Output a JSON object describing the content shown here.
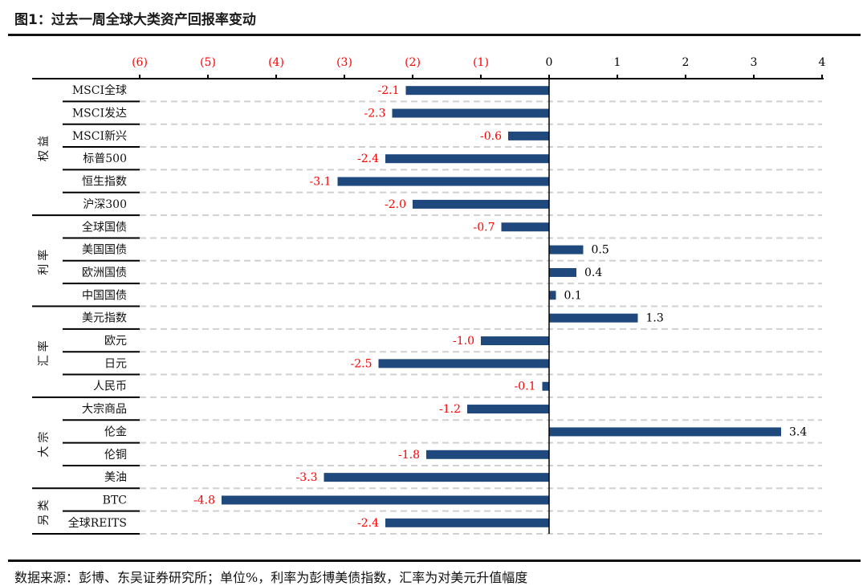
{
  "title": "图1：过去一周全球大类资产回报率变动",
  "footer": "数据来源：彭博、东吴证券研究所；单位%，利率为彭博美债指数，汇率为对美元升值幅度",
  "chart_data": {
    "type": "bar",
    "orientation": "horizontal",
    "xlim": [
      -6,
      4
    ],
    "xticks": [
      -6,
      -5,
      -4,
      -3,
      -2,
      -1,
      0,
      1,
      2,
      3,
      4
    ],
    "xtick_labels": [
      "(6)",
      "(5)",
      "(4)",
      "(3)",
      "(2)",
      "(1)",
      "0",
      "1",
      "2",
      "3",
      "4"
    ],
    "axis_position": "top",
    "grid": "dashed horizontal",
    "bar_color": "#1f497d",
    "negative_label_color": "#ff0000",
    "positive_label_color": "#000000",
    "groups": [
      {
        "name": "权益",
        "categories": [
          "MSCI全球",
          "MSCI发达",
          "MSCI新兴",
          "标普500",
          "恒生指数",
          "沪深300"
        ],
        "values": [
          -2.1,
          -2.3,
          -0.6,
          -2.4,
          -3.1,
          -2.0
        ]
      },
      {
        "name": "利率",
        "categories": [
          "全球国债",
          "美国国债",
          "欧洲国债",
          "中国国债"
        ],
        "values": [
          -0.7,
          0.5,
          0.4,
          0.1
        ]
      },
      {
        "name": "汇率",
        "categories": [
          "美元指数",
          "欧元",
          "日元",
          "人民币"
        ],
        "values": [
          1.3,
          -1.0,
          -2.5,
          -0.1
        ]
      },
      {
        "name": "大宗",
        "categories": [
          "大宗商品",
          "伦金",
          "伦铜",
          "美油"
        ],
        "values": [
          -1.2,
          3.4,
          -1.8,
          -3.3
        ]
      },
      {
        "name": "另类",
        "categories": [
          "BTC",
          "全球REITS"
        ],
        "values": [
          -4.8,
          -2.4
        ]
      }
    ]
  }
}
